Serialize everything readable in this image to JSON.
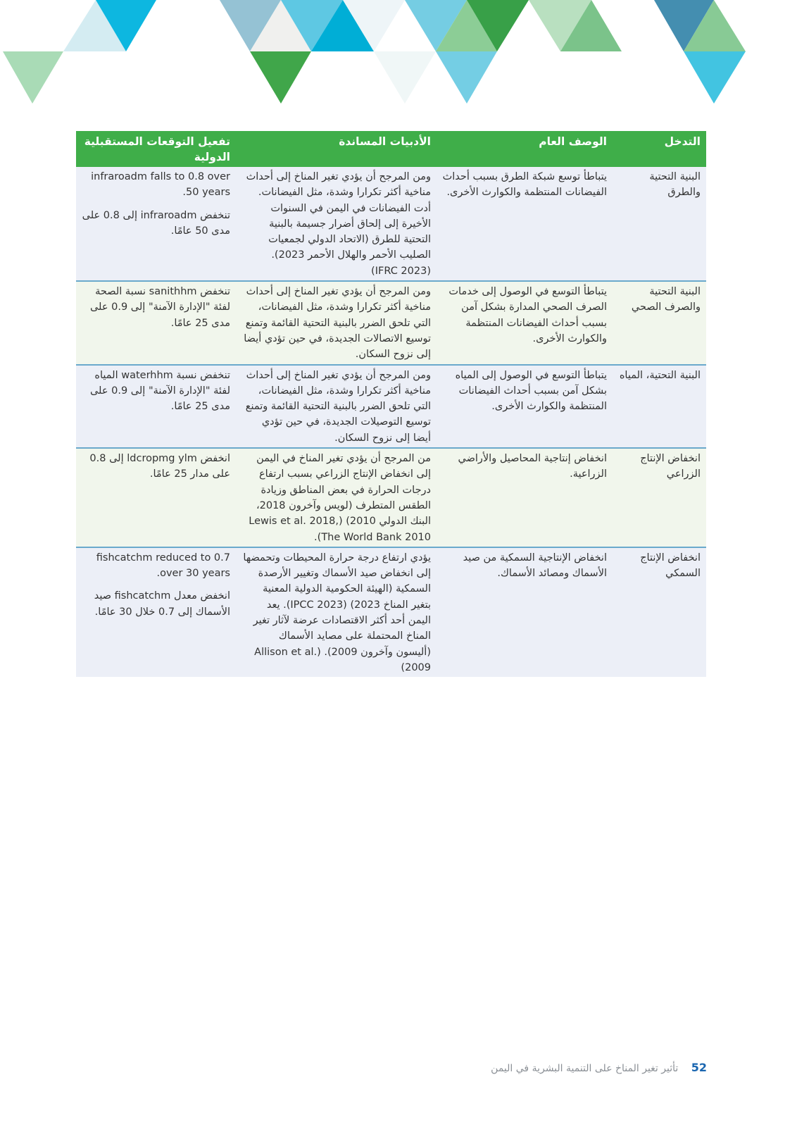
{
  "decoration": {
    "colors": [
      "#d4ecf2",
      "#0db7e0",
      "#95c2d4",
      "#f0f0ee",
      "#5ec8e3",
      "#00aed6",
      "#eef5f8",
      "#75cde3",
      "#8ccd96",
      "#38a048",
      "#b9e0c0",
      "#7bc38a",
      "#448eb0",
      "#88ca95",
      "#a9dbb6",
      "#40a64a",
      "#f0f7f7",
      "#74cee4",
      "#42c4e1"
    ]
  },
  "table": {
    "headers": [
      "التدخل",
      "الوصف العام",
      "الأدبيات المساندة",
      "تفعيل التوقعات المستقبلية الدولية"
    ],
    "rows": [
      {
        "intervention": "البنية التحتية والطرق",
        "description": "يتباطأ توسع شبكة الطرق بسبب أحداث الفيضانات المنتظمة والكوارث الأخرى.",
        "literature": "ومن المرجح أن يؤدي تغير المناخ إلى أحداث مناخية أكثر تكرارا وشدة، مثل الفيضانات. أدت الفيضانات في اليمن في السنوات الأخيرة إلى إلحاق أضرار جسيمة بالبنية التحتية للطرق (الاتحاد الدولي لجمعيات الصليب الأحمر والهلال الأحمر 2023). (IFRC 2023)",
        "projection_en": "infraroadm falls to 0.8 over 50 years.",
        "projection_ar": "تنخفض infraroadm إلى 0.8 على مدى 50 عامًا."
      },
      {
        "intervention": "البنية التحتية والصرف الصحي",
        "description": "يتباطأ التوسع في الوصول إلى خدمات الصرف الصحي المدارة بشكل آمن بسبب أحداث الفيضانات المنتظمة والكوارث الأخرى.",
        "literature": "ومن المرجح أن يؤدي تغير المناخ إلى أحداث مناخية أكثر تكرارا وشدة، مثل الفيضانات، التي تلحق الضرر بالبنية التحتية القائمة وتمنع توسيع الاتصالات الجديدة، في حين تؤدي أيضا إلى نزوح السكان.",
        "projection_ar": "تنخفض sanithhm نسبة الصحة لفئة \"الإدارة الآمنة\" إلى 0.9 على مدى 25 عامًا."
      },
      {
        "intervention": "البنية التحتية، المياه",
        "description": "يتباطأ التوسع في الوصول إلى المياه بشكل آمن بسبب أحداث الفيضانات المنتظمة والكوارث الأخرى.",
        "literature": "ومن المرجح أن يؤدي تغير المناخ إلى أحداث مناخية أكثر تكرارا وشدة، مثل الفيضانات، التي تلحق الضرر بالبنية التحتية القائمة وتمنع توسيع التوصيلات الجديدة، في حين تؤدي أيضا إلى نزوح السكان.",
        "projection_ar": "تنخفض نسبة waterhhm المياه لفئة \"الإدارة الآمنة\" إلى 0.9 على مدى 25 عامًا."
      },
      {
        "intervention": "انخفاض الإنتاج الزراعي",
        "description": "انخفاض إنتاجية المحاصيل والأراضي الزراعية.",
        "literature": "من المرجح أن يؤدي تغير المناخ في اليمن إلى انخفاض الإنتاج الزراعي بسبب ارتفاع درجات الحرارة في بعض المناطق وزيادة الطقس المتطرف (لويس وآخرون 2018، البنك الدولي 2010) (Lewis et al. 2018, The World Bank 2010).",
        "projection_ar": "انخفض ldcropmg ylm إلى 0.8 على مدار 25 عامًا."
      },
      {
        "intervention": "انخفاض الإنتاج السمكي",
        "description": "انخفاض الإنتاجية السمكية من صيد الأسماك ومصائد الأسماك.",
        "literature": "يؤدي ارتفاع درجة حرارة المحيطات وتحمضها إلى انخفاض صيد الأسماك وتغيير الأرصدة السمكية (الهيئة الحكومية الدولية المعنية بتغير المناخ 2023) (IPCC 2023). يعد اليمن أحد أكثر الاقتصادات عرضة لآثار تغير المناخ المحتملة على مصايد الأسماك (أليسون وآخرون 2009). (Allison et al. 2009)",
        "projection_en": "fishcatchm reduced to 0.7 over 30 years.",
        "projection_ar": "انخفض معدل fishcatchm صيد الأسماك إلى 0.7 خلال 30 عامًا."
      }
    ]
  },
  "footer": {
    "page_number": "52",
    "title": "تأثير تغير المناخ على التنمية البشرية في اليمن"
  }
}
